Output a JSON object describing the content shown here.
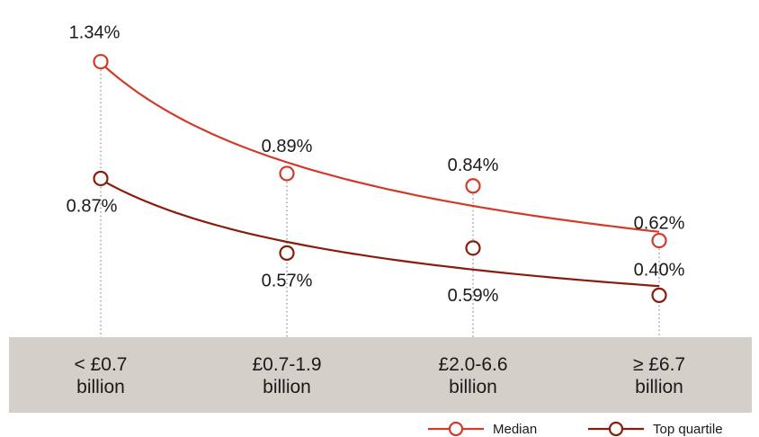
{
  "chart_data": {
    "type": "line",
    "categories": [
      [
        "< £0.7",
        "billion"
      ],
      [
        "£0.7-1.9",
        "billion"
      ],
      [
        "£2.0-6.6",
        "billion"
      ],
      [
        "≥ £6.7",
        "billion"
      ]
    ],
    "series": [
      {
        "name": "Median",
        "values": [
          1.34,
          0.89,
          0.84,
          0.62
        ],
        "labels": [
          "1.34%",
          "0.89%",
          "0.84%",
          "0.62%"
        ],
        "color": "#d13b2a"
      },
      {
        "name": "Top quartile",
        "values": [
          0.87,
          0.57,
          0.59,
          0.4
        ],
        "labels": [
          "0.87%",
          "0.57%",
          "0.59%",
          "0.40%"
        ],
        "color": "#8a1c0c"
      }
    ],
    "ylim": [
      0.3,
      1.4
    ],
    "trend_lines": true,
    "category_band_color": "#d4cfc9",
    "guide_line_color": "#9a9a9a",
    "legend": {
      "position": "bottom-right"
    }
  }
}
